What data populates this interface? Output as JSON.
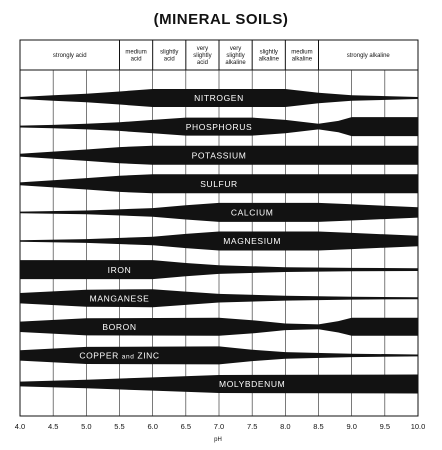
{
  "title": "(MINERAL SOILS)",
  "header_zones": [
    {
      "from": 4.0,
      "to": 5.5,
      "lines": [
        "strongly acid"
      ]
    },
    {
      "from": 5.5,
      "to": 6.0,
      "lines": [
        "medium",
        "acid"
      ]
    },
    {
      "from": 6.0,
      "to": 6.5,
      "lines": [
        "slightly",
        "acid"
      ]
    },
    {
      "from": 6.5,
      "to": 7.0,
      "lines": [
        "very",
        "slightly",
        "acid"
      ]
    },
    {
      "from": 7.0,
      "to": 7.5,
      "lines": [
        "very",
        "slightly",
        "alkaline"
      ]
    },
    {
      "from": 7.5,
      "to": 8.0,
      "lines": [
        "slightly",
        "alkaline"
      ]
    },
    {
      "from": 8.0,
      "to": 8.5,
      "lines": [
        "medium",
        "alkaline"
      ]
    },
    {
      "from": 8.5,
      "to": 10.0,
      "lines": [
        "strongly alkaline"
      ]
    }
  ],
  "x_axis": {
    "label": "pH",
    "min": 4.0,
    "max": 10.0,
    "ticks": [
      "4.0",
      "4.5",
      "5.0",
      "5.5",
      "6.0",
      "6.5",
      "7.0",
      "7.5",
      "8.0",
      "8.5",
      "9.0",
      "9.5",
      "10.0"
    ]
  },
  "chart_data": {
    "type": "band",
    "x_unit": "pH",
    "series": [
      {
        "name": "NITROGEN",
        "label_ph": 7.0,
        "profile": [
          [
            4.0,
            0.1
          ],
          [
            4.5,
            0.28
          ],
          [
            5.0,
            0.45
          ],
          [
            5.5,
            0.68
          ],
          [
            6.0,
            0.95
          ],
          [
            8.0,
            0.95
          ],
          [
            8.5,
            0.55
          ],
          [
            9.0,
            0.3
          ],
          [
            10.0,
            0.1
          ]
        ]
      },
      {
        "name": "PHOSPHORUS",
        "label_ph": 7.0,
        "profile": [
          [
            4.0,
            0.1
          ],
          [
            4.5,
            0.18
          ],
          [
            5.0,
            0.3
          ],
          [
            5.5,
            0.45
          ],
          [
            6.0,
            0.7
          ],
          [
            6.5,
            0.95
          ],
          [
            7.5,
            0.95
          ],
          [
            8.0,
            0.7
          ],
          [
            8.5,
            0.3
          ],
          [
            8.8,
            0.6
          ],
          [
            9.0,
            1.0
          ],
          [
            10.0,
            1.0
          ]
        ]
      },
      {
        "name": "POTASSIUM",
        "label_ph": 7.0,
        "profile": [
          [
            4.0,
            0.15
          ],
          [
            4.5,
            0.38
          ],
          [
            5.0,
            0.6
          ],
          [
            5.5,
            0.85
          ],
          [
            6.0,
            1.0
          ],
          [
            10.0,
            1.0
          ]
        ]
      },
      {
        "name": "SULFUR",
        "label_ph": 7.0,
        "profile": [
          [
            4.0,
            0.15
          ],
          [
            4.5,
            0.38
          ],
          [
            5.0,
            0.6
          ],
          [
            5.5,
            0.85
          ],
          [
            6.0,
            1.0
          ],
          [
            10.0,
            1.0
          ]
        ]
      },
      {
        "name": "CALCIUM",
        "label_ph": 7.5,
        "profile": [
          [
            4.0,
            0.08
          ],
          [
            5.0,
            0.2
          ],
          [
            6.0,
            0.45
          ],
          [
            6.5,
            0.75
          ],
          [
            7.0,
            1.0
          ],
          [
            8.5,
            1.0
          ],
          [
            9.0,
            0.85
          ],
          [
            10.0,
            0.55
          ]
        ]
      },
      {
        "name": "MAGNESIUM",
        "label_ph": 7.5,
        "profile": [
          [
            4.0,
            0.08
          ],
          [
            5.0,
            0.2
          ],
          [
            6.0,
            0.45
          ],
          [
            6.5,
            0.75
          ],
          [
            7.0,
            1.0
          ],
          [
            8.5,
            1.0
          ],
          [
            9.0,
            0.85
          ],
          [
            10.0,
            0.55
          ]
        ]
      },
      {
        "name": "IRON",
        "label_ph": 5.5,
        "profile": [
          [
            4.0,
            1.0
          ],
          [
            6.0,
            1.0
          ],
          [
            6.5,
            0.7
          ],
          [
            7.0,
            0.45
          ],
          [
            8.0,
            0.25
          ],
          [
            9.0,
            0.18
          ],
          [
            10.0,
            0.15
          ]
        ]
      },
      {
        "name": "MANGANESE",
        "label_ph": 5.5,
        "profile": [
          [
            4.0,
            0.55
          ],
          [
            5.0,
            0.9
          ],
          [
            6.0,
            0.95
          ],
          [
            6.5,
            0.7
          ],
          [
            7.0,
            0.45
          ],
          [
            8.0,
            0.25
          ],
          [
            9.0,
            0.15
          ],
          [
            10.0,
            0.1
          ]
        ]
      },
      {
        "name": "BORON",
        "label_ph": 5.5,
        "profile": [
          [
            4.0,
            0.55
          ],
          [
            5.0,
            0.9
          ],
          [
            7.0,
            0.95
          ],
          [
            7.5,
            0.7
          ],
          [
            8.0,
            0.35
          ],
          [
            8.5,
            0.25
          ],
          [
            8.8,
            0.6
          ],
          [
            9.0,
            0.95
          ],
          [
            10.0,
            0.95
          ]
        ]
      },
      {
        "name": "COPPER and ZINC",
        "label_ph": 5.5,
        "profile": [
          [
            4.0,
            0.55
          ],
          [
            5.0,
            0.9
          ],
          [
            7.0,
            0.95
          ],
          [
            7.5,
            0.6
          ],
          [
            8.0,
            0.35
          ],
          [
            9.0,
            0.18
          ],
          [
            10.0,
            0.1
          ]
        ]
      },
      {
        "name": "MOLYBDENUM",
        "label_ph": 7.5,
        "profile": [
          [
            4.0,
            0.25
          ],
          [
            5.0,
            0.45
          ],
          [
            6.0,
            0.7
          ],
          [
            7.0,
            0.95
          ],
          [
            10.0,
            1.0
          ]
        ]
      }
    ]
  }
}
